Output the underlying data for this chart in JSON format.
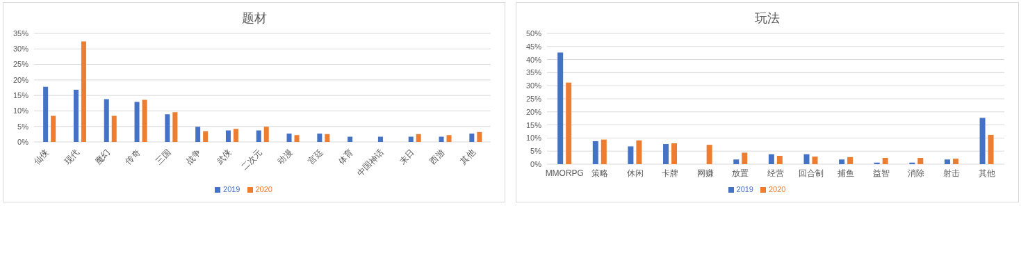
{
  "chart_data": [
    {
      "type": "bar",
      "title": "题材",
      "categories": [
        "仙侠",
        "现代",
        "魔幻",
        "传奇",
        "三国",
        "战争",
        "武侠",
        "二次元",
        "动漫",
        "宫廷",
        "体育",
        "中国神话",
        "末日",
        "西游",
        "其他"
      ],
      "series": [
        {
          "name": "2019",
          "color": "#4472c4",
          "values": [
            17.8,
            16.8,
            13.8,
            12.9,
            8.9,
            4.9,
            3.7,
            3.7,
            2.7,
            2.7,
            1.7,
            1.7,
            1.7,
            1.7,
            2.7
          ]
        },
        {
          "name": "2020",
          "color": "#ed7d31",
          "values": [
            8.4,
            32.4,
            8.4,
            13.6,
            9.6,
            3.5,
            4.2,
            4.9,
            2.2,
            2.5,
            null,
            null,
            2.5,
            2.2,
            3.2
          ]
        }
      ],
      "ylim": [
        0,
        35
      ],
      "yticks": [
        {
          "value": 0,
          "label": "0%"
        },
        {
          "value": 5,
          "label": "5%"
        },
        {
          "value": 10,
          "label": "10%"
        },
        {
          "value": 15,
          "label": "15%"
        },
        {
          "value": 20,
          "label": "20%"
        },
        {
          "value": 25,
          "label": "25%"
        },
        {
          "value": 30,
          "label": "30%"
        },
        {
          "value": 35,
          "label": "35%"
        }
      ],
      "grid": "y",
      "legend": "bottom"
    },
    {
      "type": "bar",
      "title": "玩法",
      "categories": [
        "MMORPG",
        "策略",
        "休闲",
        "卡牌",
        "网赚",
        "放置",
        "经营",
        "回合制",
        "捕鱼",
        "益智",
        "消除",
        "射击",
        "其他"
      ],
      "series": [
        {
          "name": "2019",
          "color": "#4472c4",
          "values": [
            42.7,
            8.8,
            6.8,
            7.7,
            null,
            1.8,
            3.8,
            3.8,
            1.8,
            0.6,
            0.6,
            1.8,
            17.7
          ]
        },
        {
          "name": "2020",
          "color": "#ed7d31",
          "values": [
            31.2,
            9.4,
            9.1,
            8.0,
            7.4,
            4.4,
            3.2,
            2.9,
            2.7,
            2.4,
            2.4,
            2.1,
            11.2
          ]
        }
      ],
      "ylim": [
        0,
        50
      ],
      "yticks": [
        {
          "value": 0,
          "label": "0%"
        },
        {
          "value": 5,
          "label": "5%"
        },
        {
          "value": 10,
          "label": "10%"
        },
        {
          "value": 15,
          "label": "15%"
        },
        {
          "value": 20,
          "label": "20%"
        },
        {
          "value": 25,
          "label": "25%"
        },
        {
          "value": 30,
          "label": "30%"
        },
        {
          "value": 35,
          "label": "35%"
        },
        {
          "value": 40,
          "label": "40%"
        },
        {
          "value": 45,
          "label": "45%"
        },
        {
          "value": 50,
          "label": "50%"
        }
      ],
      "grid": "y",
      "legend": "bottom"
    }
  ]
}
